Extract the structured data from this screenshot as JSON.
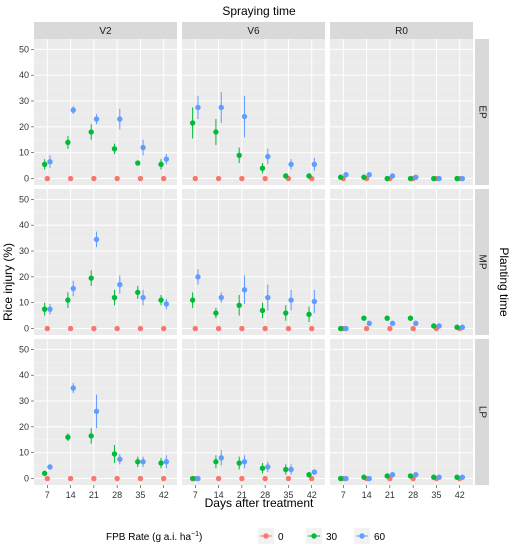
{
  "chart_data": {
    "type": "scatter",
    "title": "Spraying time",
    "xlabel": "Days after treatment",
    "ylabel": "Rice injury (%)",
    "right_label": "Planting time",
    "x_ticks": [
      "7",
      "14",
      "21",
      "28",
      "35",
      "42"
    ],
    "y_ticks": [
      "0",
      "10",
      "20",
      "30",
      "40",
      "50"
    ],
    "x_values": [
      7,
      14,
      21,
      28,
      35,
      42
    ],
    "xlim": [
      3,
      46
    ],
    "ylim": [
      -2.5,
      54
    ],
    "col_facets": [
      "V2",
      "V6",
      "R0"
    ],
    "row_facets": [
      "EP",
      "MP",
      "LP"
    ],
    "grid": true,
    "legend": {
      "title_prefix": "FPB Rate (g a.i. ha",
      "title_sup": "−1",
      "title_suffix": ")",
      "position": "bottom",
      "entries": [
        "0",
        "30",
        "60"
      ]
    },
    "colors": {
      "0": "#F8766D",
      "30": "#00BA38",
      "60": "#619CFF"
    },
    "panels": [
      {
        "row": "EP",
        "col": "V2",
        "series": [
          {
            "name": "0",
            "y": [
              0,
              0,
              0,
              0,
              0,
              0
            ],
            "err": [
              0,
              0,
              0,
              0,
              0,
              0
            ]
          },
          {
            "name": "30",
            "y": [
              5.5,
              14,
              18,
              11.5,
              6,
              5.5
            ],
            "err": [
              2,
              2.5,
              3,
              2,
              0.5,
              2
            ]
          },
          {
            "name": "60",
            "y": [
              6.5,
              26.5,
              23,
              23,
              12,
              7.5
            ],
            "err": [
              2.5,
              1.5,
              2,
              4,
              3,
              2
            ]
          }
        ]
      },
      {
        "row": "EP",
        "col": "V6",
        "series": [
          {
            "name": "0",
            "y": [
              0,
              0,
              0,
              0,
              0,
              0
            ],
            "err": [
              0,
              0,
              0,
              0,
              0,
              0
            ]
          },
          {
            "name": "30",
            "y": [
              21.5,
              18,
              9,
              4,
              1,
              1
            ],
            "err": [
              6,
              5,
              3,
              2,
              1,
              1
            ]
          },
          {
            "name": "60",
            "y": [
              27.5,
              27.5,
              24,
              8.5,
              5.5,
              5.5
            ],
            "err": [
              4.5,
              6,
              8,
              3,
              2,
              2.5
            ]
          }
        ]
      },
      {
        "row": "EP",
        "col": "R0",
        "series": [
          {
            "name": "0",
            "y": [
              0,
              0,
              0,
              0,
              0,
              0
            ],
            "err": [
              0,
              0,
              0,
              0,
              0,
              0
            ]
          },
          {
            "name": "30",
            "y": [
              0.5,
              0.5,
              0,
              0,
              0,
              0
            ],
            "err": [
              0.3,
              0.3,
              0,
              0,
              0,
              0
            ]
          },
          {
            "name": "60",
            "y": [
              1.5,
              1.5,
              1,
              0.5,
              0,
              0
            ],
            "err": [
              0.5,
              0.5,
              0.5,
              0.3,
              0,
              0
            ]
          }
        ]
      },
      {
        "row": "MP",
        "col": "V2",
        "series": [
          {
            "name": "0",
            "y": [
              0,
              0,
              0,
              0,
              0,
              0
            ],
            "err": [
              0,
              0,
              0,
              0,
              0,
              0
            ]
          },
          {
            "name": "30",
            "y": [
              7.5,
              11,
              19.5,
              12,
              14,
              11
            ],
            "err": [
              2.5,
              3,
              3,
              3,
              2.5,
              2
            ]
          },
          {
            "name": "60",
            "y": [
              7.5,
              15.5,
              34.5,
              17,
              12,
              9.5
            ],
            "err": [
              2,
              3,
              3,
              3.5,
              3,
              2
            ]
          }
        ]
      },
      {
        "row": "MP",
        "col": "V6",
        "series": [
          {
            "name": "0",
            "y": [
              0,
              0,
              0,
              0,
              0,
              0
            ],
            "err": [
              0,
              0,
              0,
              0,
              0,
              0
            ]
          },
          {
            "name": "30",
            "y": [
              11,
              6,
              9,
              7,
              6,
              5.5
            ],
            "err": [
              3,
              2,
              4,
              3,
              3,
              3
            ]
          },
          {
            "name": "60",
            "y": [
              20,
              12,
              15,
              12,
              11,
              10.5
            ],
            "err": [
              3,
              2,
              5.5,
              5,
              4,
              4.5
            ]
          }
        ]
      },
      {
        "row": "MP",
        "col": "R0",
        "series": [
          {
            "name": "0",
            "y": [
              0,
              0,
              0,
              0,
              0,
              0
            ],
            "err": [
              0,
              0,
              0,
              0,
              0,
              0
            ]
          },
          {
            "name": "30",
            "y": [
              0,
              4,
              4,
              4,
              1,
              0.5
            ],
            "err": [
              0,
              1,
              1,
              1,
              0.5,
              0.5
            ]
          },
          {
            "name": "60",
            "y": [
              0,
              2,
              2,
              2,
              1,
              0.5
            ],
            "err": [
              0,
              1,
              1,
              1,
              0.5,
              0.5
            ]
          }
        ]
      },
      {
        "row": "LP",
        "col": "V2",
        "series": [
          {
            "name": "0",
            "y": [
              0,
              0,
              0,
              0,
              0,
              0
            ],
            "err": [
              0,
              0,
              0,
              0,
              0,
              0
            ]
          },
          {
            "name": "30",
            "y": [
              2,
              16,
              16.5,
              9.5,
              6.5,
              6
            ],
            "err": [
              1,
              1.5,
              3,
              3.5,
              2,
              2
            ]
          },
          {
            "name": "60",
            "y": [
              4.5,
              35,
              26,
              7.5,
              6.5,
              6.5
            ],
            "err": [
              1,
              2,
              6.5,
              2,
              2,
              2.5
            ]
          }
        ]
      },
      {
        "row": "LP",
        "col": "V6",
        "series": [
          {
            "name": "0",
            "y": [
              0,
              0,
              0,
              0,
              0,
              0
            ],
            "err": [
              0,
              0,
              0,
              0,
              0,
              0
            ]
          },
          {
            "name": "30",
            "y": [
              0,
              6.5,
              6,
              4,
              3.5,
              1.5
            ],
            "err": [
              0,
              2.5,
              2.5,
              2,
              2,
              1
            ]
          },
          {
            "name": "60",
            "y": [
              0,
              8,
              6.5,
              4.5,
              3.5,
              2.5
            ],
            "err": [
              0,
              3,
              2.5,
              2,
              2,
              1
            ]
          }
        ]
      },
      {
        "row": "LP",
        "col": "R0",
        "series": [
          {
            "name": "0",
            "y": [
              0,
              0,
              0,
              0,
              0,
              0
            ],
            "err": [
              0,
              0,
              0,
              0,
              0,
              0
            ]
          },
          {
            "name": "30",
            "y": [
              0,
              0.5,
              1,
              1,
              0.5,
              0.5
            ],
            "err": [
              0,
              0.3,
              0.5,
              0.5,
              0.3,
              0.3
            ]
          },
          {
            "name": "60",
            "y": [
              0,
              0,
              1.5,
              1.5,
              0.5,
              0.5
            ],
            "err": [
              0,
              0,
              1,
              1,
              0.3,
              0.3
            ]
          }
        ]
      }
    ]
  }
}
